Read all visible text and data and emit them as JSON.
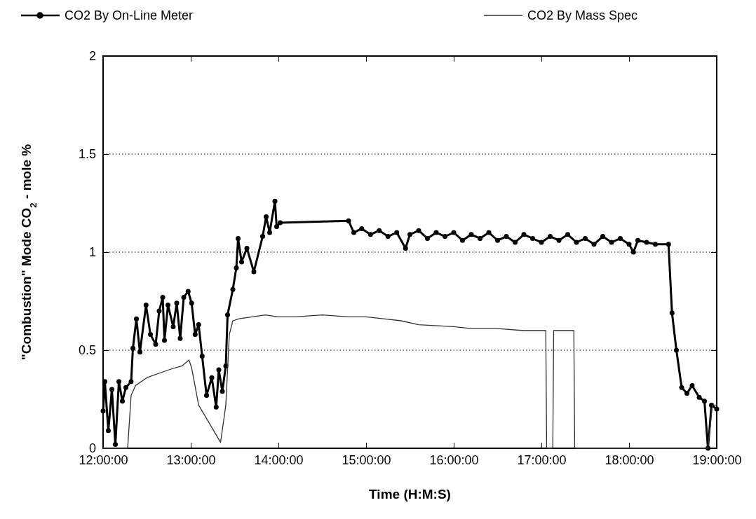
{
  "chart_data": {
    "type": "line",
    "xlabel": "Time  (H:M:S)",
    "ylabel": "\"Combustion\" Mode CO$_{2}$ - mole %",
    "xlim": [
      12,
      19
    ],
    "xticks": [
      {
        "value": 12,
        "label": "12:00:00"
      },
      {
        "value": 13,
        "label": "13:00:00"
      },
      {
        "value": 14,
        "label": "14:00:00"
      },
      {
        "value": 15,
        "label": "15:00:00"
      },
      {
        "value": 16,
        "label": "16:00:00"
      },
      {
        "value": 17,
        "label": "17:00:00"
      },
      {
        "value": 18,
        "label": "18:00:00"
      },
      {
        "value": 19,
        "label": "19:00:00"
      }
    ],
    "ylim": [
      0,
      2
    ],
    "yticks": [
      0,
      0.5,
      1,
      1.5,
      2
    ],
    "grid": "y",
    "legend": "top",
    "line_style": "solid",
    "series": [
      {
        "name": "CO2 By On-Line Meter",
        "color": "#000000",
        "marker": "circle",
        "x": [
          12.0,
          12.02,
          12.06,
          12.1,
          12.14,
          12.18,
          12.22,
          12.26,
          12.32,
          12.34,
          12.38,
          12.42,
          12.49,
          12.54,
          12.6,
          12.64,
          12.68,
          12.7,
          12.74,
          12.8,
          12.84,
          12.88,
          12.92,
          12.97,
          13.01,
          13.05,
          13.09,
          13.13,
          13.18,
          13.24,
          13.29,
          13.32,
          13.36,
          13.4,
          13.42,
          13.48,
          13.52,
          13.54,
          13.58,
          13.64,
          13.72,
          13.82,
          13.86,
          13.9,
          13.96,
          13.98,
          14.02,
          14.8,
          14.86,
          14.95,
          15.05,
          15.15,
          15.25,
          15.35,
          15.45,
          15.5,
          15.6,
          15.7,
          15.8,
          15.9,
          16.0,
          16.1,
          16.2,
          16.3,
          16.4,
          16.5,
          16.6,
          16.7,
          16.8,
          16.9,
          17.0,
          17.1,
          17.2,
          17.3,
          17.4,
          17.5,
          17.6,
          17.7,
          17.8,
          17.9,
          18.0,
          18.05,
          18.1,
          18.2,
          18.3,
          18.45,
          18.49,
          18.54,
          18.6,
          18.66,
          18.72,
          18.8,
          18.86,
          18.9,
          18.94,
          19.0
        ],
        "values": [
          0.19,
          0.34,
          0.09,
          0.3,
          0.02,
          0.34,
          0.24,
          0.31,
          0.34,
          0.51,
          0.66,
          0.49,
          0.73,
          0.58,
          0.53,
          0.7,
          0.77,
          0.55,
          0.73,
          0.62,
          0.74,
          0.56,
          0.77,
          0.8,
          0.74,
          0.58,
          0.63,
          0.47,
          0.27,
          0.36,
          0.21,
          0.4,
          0.29,
          0.42,
          0.68,
          0.81,
          0.92,
          1.07,
          0.95,
          1.02,
          0.9,
          1.08,
          1.18,
          1.1,
          1.26,
          1.13,
          1.15,
          1.16,
          1.1,
          1.12,
          1.09,
          1.11,
          1.08,
          1.1,
          1.02,
          1.09,
          1.11,
          1.07,
          1.1,
          1.08,
          1.1,
          1.06,
          1.09,
          1.07,
          1.1,
          1.06,
          1.08,
          1.05,
          1.09,
          1.07,
          1.05,
          1.08,
          1.06,
          1.09,
          1.05,
          1.07,
          1.04,
          1.08,
          1.05,
          1.07,
          1.04,
          1.0,
          1.06,
          1.05,
          1.04,
          1.04,
          0.69,
          0.5,
          0.31,
          0.28,
          0.32,
          0.26,
          0.24,
          0.0,
          0.22,
          0.2
        ]
      },
      {
        "name": "CO2 By Mass Spec",
        "color": "#333333",
        "marker": "none",
        "x": [
          12.0,
          12.28,
          12.32,
          12.37,
          12.5,
          12.75,
          12.9,
          12.98,
          13.01,
          13.09,
          13.34,
          13.4,
          13.44,
          13.48,
          13.55,
          13.7,
          13.85,
          14.0,
          14.2,
          14.5,
          14.8,
          15.0,
          15.2,
          15.4,
          15.6,
          16.0,
          16.2,
          16.5,
          16.8,
          17.05,
          17.06,
          17.13,
          17.14,
          17.37,
          17.38,
          18.9,
          18.95,
          19.0
        ],
        "values": [
          0,
          0,
          0.27,
          0.32,
          0.36,
          0.4,
          0.42,
          0.45,
          0.41,
          0.22,
          0.03,
          0.22,
          0.58,
          0.65,
          0.66,
          0.67,
          0.68,
          0.67,
          0.67,
          0.68,
          0.67,
          0.67,
          0.66,
          0.65,
          0.63,
          0.62,
          0.61,
          0.61,
          0.6,
          0.6,
          0,
          0,
          0.6,
          0.6,
          0,
          0,
          0.22,
          0.22
        ]
      }
    ]
  }
}
